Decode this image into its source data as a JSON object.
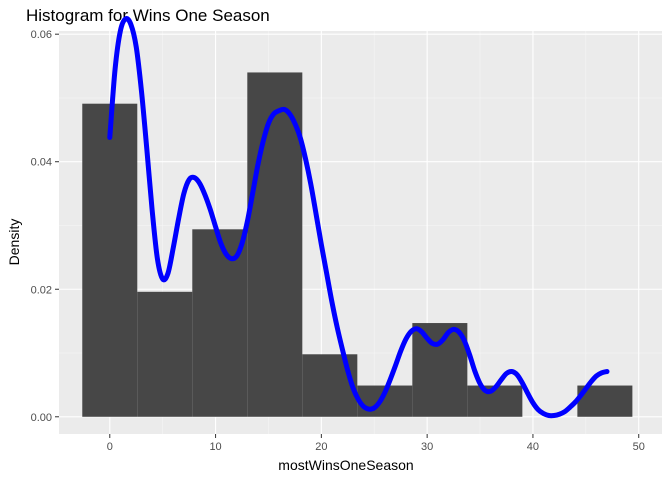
{
  "chart_data": {
    "type": "bar",
    "title": "Histogram for Wins One Season",
    "xlabel": "mostWinsOneSeason",
    "ylabel": "Density",
    "xlim": [
      -4.8,
      52.2
    ],
    "ylim": [
      -0.0027,
      0.0605
    ],
    "x_ticks": [
      0,
      10,
      20,
      30,
      40,
      50
    ],
    "y_ticks": [
      0.0,
      0.02,
      0.04,
      0.06
    ],
    "x_tick_labels": [
      "0",
      "10",
      "20",
      "30",
      "40",
      "50"
    ],
    "y_tick_labels": [
      "0.00",
      "0.02",
      "0.04",
      "0.06"
    ],
    "grid": true,
    "bar_color": "#474747",
    "panel_background": "#ebebeb",
    "histogram": {
      "bins": [
        {
          "x0": -2.6,
          "x1": 2.6,
          "density": 0.0491
        },
        {
          "x0": 2.6,
          "x1": 7.8,
          "density": 0.0196
        },
        {
          "x0": 7.8,
          "x1": 13.0,
          "density": 0.0294
        },
        {
          "x0": 13.0,
          "x1": 18.2,
          "density": 0.054
        },
        {
          "x0": 18.2,
          "x1": 23.4,
          "density": 0.0098
        },
        {
          "x0": 23.4,
          "x1": 28.6,
          "density": 0.0049
        },
        {
          "x0": 28.6,
          "x1": 33.8,
          "density": 0.0147
        },
        {
          "x0": 33.8,
          "x1": 39.0,
          "density": 0.0049
        },
        {
          "x0": 39.0,
          "x1": 44.2,
          "density": 0.0
        },
        {
          "x0": 44.2,
          "x1": 49.4,
          "density": 0.0049
        }
      ]
    },
    "density_line": {
      "color": "#0000ff",
      "points": [
        [
          0.0,
          0.0438
        ],
        [
          0.5,
          0.0545
        ],
        [
          1.0,
          0.0605
        ],
        [
          1.5,
          0.0624
        ],
        [
          2.0,
          0.0615
        ],
        [
          2.5,
          0.058
        ],
        [
          3.0,
          0.051
        ],
        [
          3.5,
          0.042
        ],
        [
          4.0,
          0.0325
        ],
        [
          4.5,
          0.0248
        ],
        [
          5.0,
          0.0216
        ],
        [
          5.5,
          0.0225
        ],
        [
          6.0,
          0.0265
        ],
        [
          6.5,
          0.031
        ],
        [
          7.0,
          0.035
        ],
        [
          7.5,
          0.0372
        ],
        [
          8.0,
          0.0375
        ],
        [
          8.5,
          0.0366
        ],
        [
          9.0,
          0.0348
        ],
        [
          9.5,
          0.0325
        ],
        [
          10.0,
          0.0298
        ],
        [
          10.5,
          0.0272
        ],
        [
          11.0,
          0.0255
        ],
        [
          11.5,
          0.0248
        ],
        [
          12.0,
          0.0252
        ],
        [
          12.5,
          0.0272
        ],
        [
          13.0,
          0.0306
        ],
        [
          13.5,
          0.035
        ],
        [
          14.0,
          0.0395
        ],
        [
          14.5,
          0.0432
        ],
        [
          15.0,
          0.046
        ],
        [
          15.5,
          0.0475
        ],
        [
          16.0,
          0.048
        ],
        [
          16.5,
          0.0482
        ],
        [
          17.0,
          0.0475
        ],
        [
          17.5,
          0.046
        ],
        [
          18.0,
          0.0438
        ],
        [
          18.5,
          0.0405
        ],
        [
          19.0,
          0.0365
        ],
        [
          19.5,
          0.0318
        ],
        [
          20.0,
          0.027
        ],
        [
          20.5,
          0.0225
        ],
        [
          21.0,
          0.018
        ],
        [
          21.5,
          0.014
        ],
        [
          22.0,
          0.0105
        ],
        [
          22.5,
          0.0072
        ],
        [
          23.0,
          0.0045
        ],
        [
          23.5,
          0.0027
        ],
        [
          24.0,
          0.0016
        ],
        [
          24.5,
          0.0012
        ],
        [
          25.0,
          0.0014
        ],
        [
          25.5,
          0.0023
        ],
        [
          26.0,
          0.0038
        ],
        [
          26.5,
          0.0058
        ],
        [
          27.0,
          0.008
        ],
        [
          27.5,
          0.0103
        ],
        [
          28.0,
          0.0122
        ],
        [
          28.5,
          0.0134
        ],
        [
          29.0,
          0.0138
        ],
        [
          29.5,
          0.0133
        ],
        [
          30.0,
          0.0123
        ],
        [
          30.5,
          0.0115
        ],
        [
          31.0,
          0.0114
        ],
        [
          31.5,
          0.0121
        ],
        [
          32.0,
          0.0132
        ],
        [
          32.5,
          0.0137
        ],
        [
          33.0,
          0.0133
        ],
        [
          33.5,
          0.012
        ],
        [
          34.0,
          0.0098
        ],
        [
          34.5,
          0.0072
        ],
        [
          35.0,
          0.0052
        ],
        [
          35.5,
          0.0041
        ],
        [
          36.0,
          0.004
        ],
        [
          36.5,
          0.0047
        ],
        [
          37.0,
          0.0058
        ],
        [
          37.5,
          0.0068
        ],
        [
          38.0,
          0.0071
        ],
        [
          38.5,
          0.0066
        ],
        [
          39.0,
          0.0053
        ],
        [
          39.5,
          0.0037
        ],
        [
          40.0,
          0.0022
        ],
        [
          40.5,
          0.0011
        ],
        [
          41.0,
          0.0005
        ],
        [
          41.5,
          0.0002
        ],
        [
          42.0,
          0.0002
        ],
        [
          42.5,
          0.0004
        ],
        [
          43.0,
          0.0008
        ],
        [
          43.5,
          0.0015
        ],
        [
          44.0,
          0.0023
        ],
        [
          44.5,
          0.0033
        ],
        [
          45.0,
          0.0044
        ],
        [
          45.5,
          0.0055
        ],
        [
          46.0,
          0.0064
        ],
        [
          46.5,
          0.0069
        ],
        [
          47.0,
          0.0071
        ]
      ]
    }
  }
}
